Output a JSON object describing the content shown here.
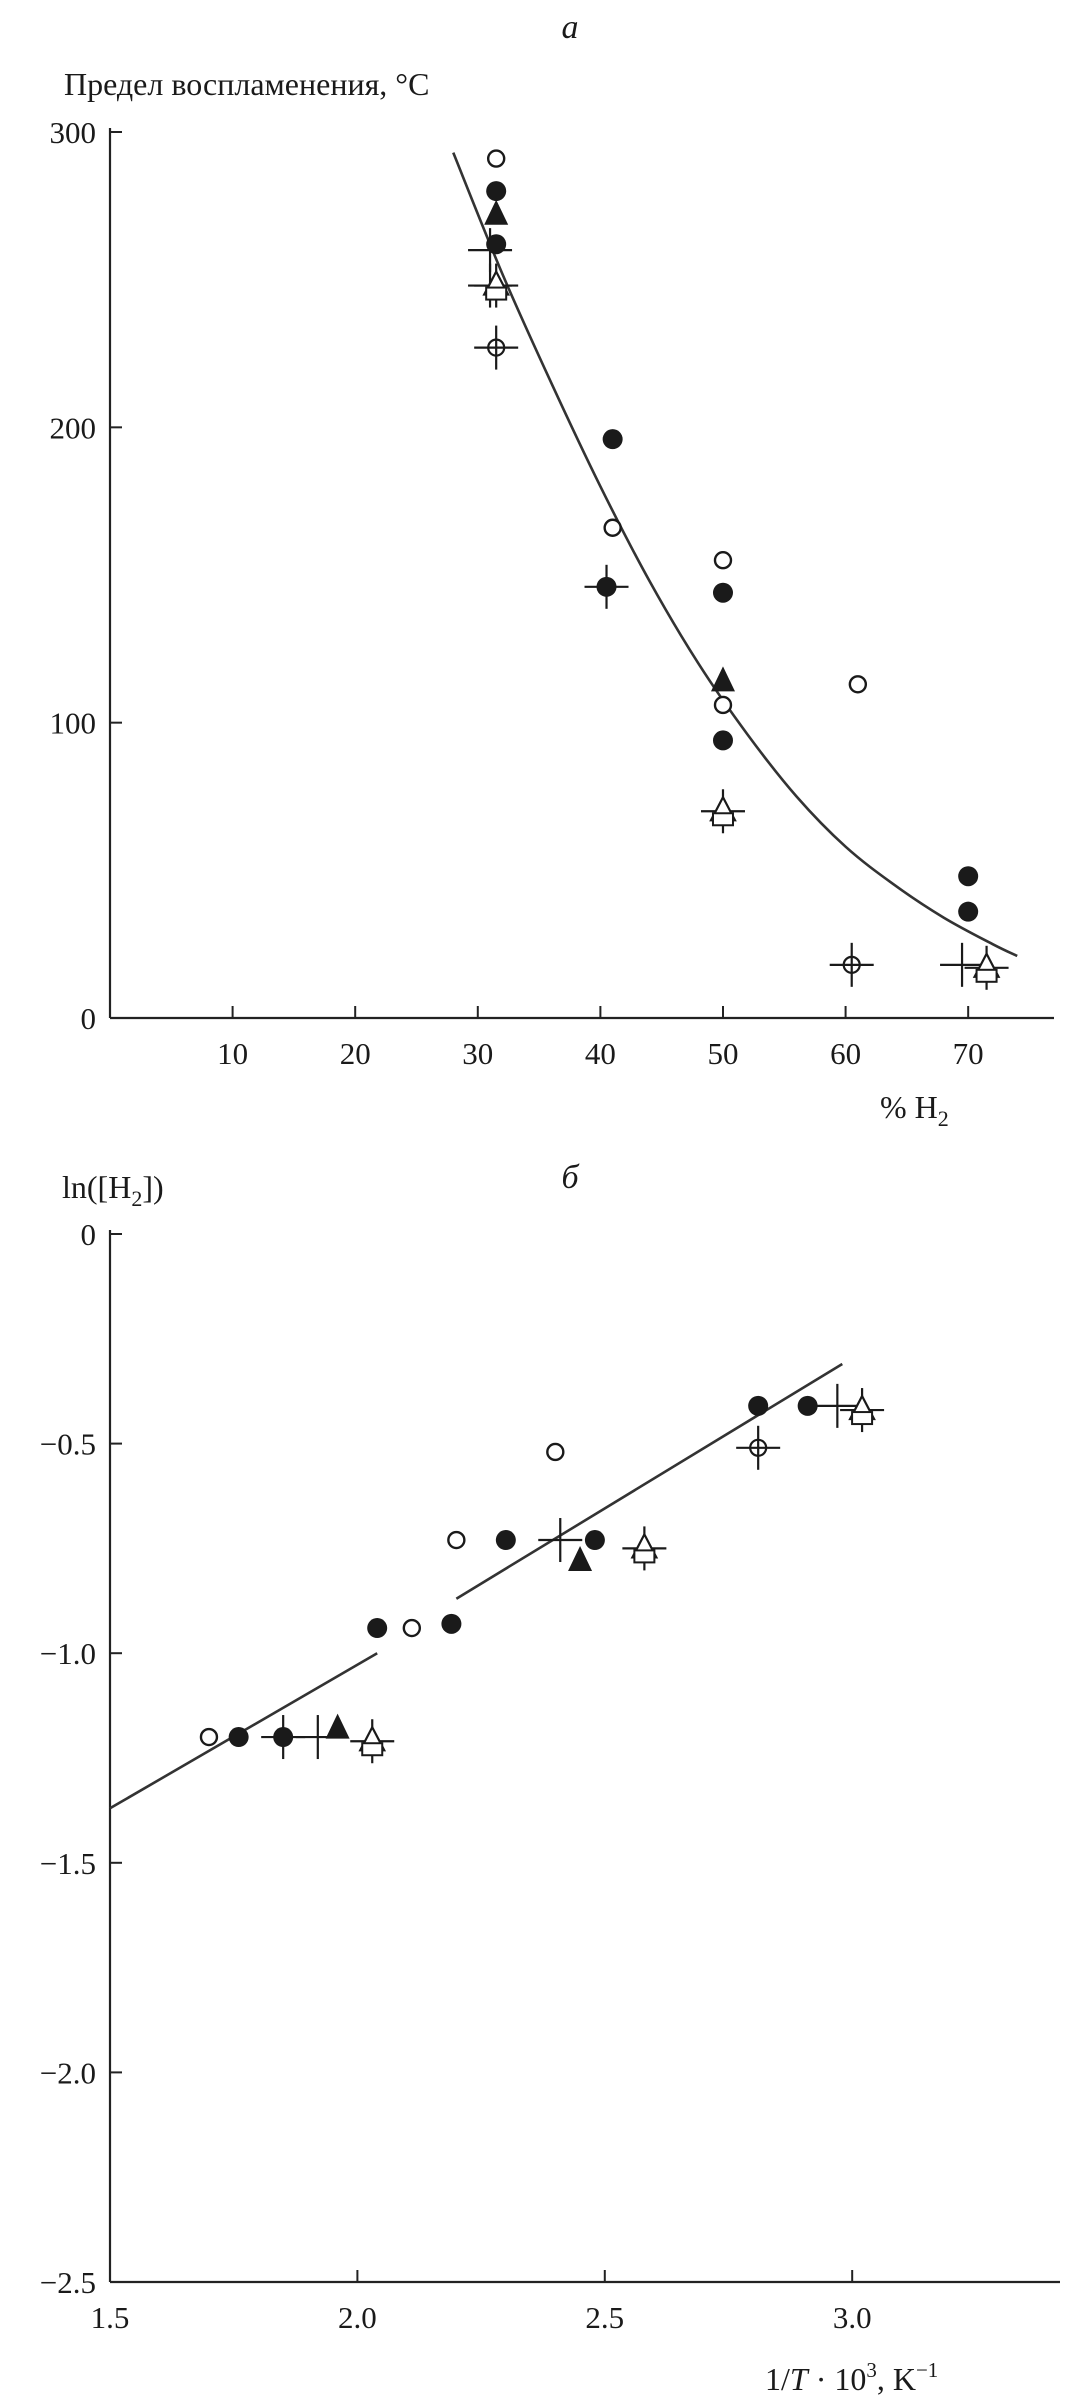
{
  "chart_data": [
    {
      "type": "scatter",
      "panel_label": "а",
      "title": "",
      "ylabel": "Предел воспламенения, °C",
      "xlabel": "% H2",
      "xlim": [
        0,
        77
      ],
      "ylim": [
        0,
        300
      ],
      "xticks": [
        "10",
        "20",
        "30",
        "40",
        "50",
        "60",
        "70"
      ],
      "yticks": [
        "0",
        "100",
        "200",
        "300"
      ],
      "grid": false,
      "fit_curve": [
        [
          28,
          293
        ],
        [
          32,
          252
        ],
        [
          36,
          215
        ],
        [
          40,
          180
        ],
        [
          44,
          148
        ],
        [
          48,
          120
        ],
        [
          52,
          96
        ],
        [
          56,
          75
        ],
        [
          60,
          58
        ],
        [
          64,
          45
        ],
        [
          68,
          34
        ],
        [
          72,
          25
        ],
        [
          74,
          21
        ]
      ],
      "series": [
        {
          "marker": "open-circle",
          "points": [
            [
              31.5,
              291
            ],
            [
              41,
              166
            ],
            [
              50,
              155
            ],
            [
              61,
              113
            ],
            [
              50,
              106
            ]
          ]
        },
        {
          "marker": "filled-circle",
          "points": [
            [
              31.5,
              280
            ],
            [
              31.5,
              262
            ],
            [
              41,
              196
            ],
            [
              50,
              144
            ],
            [
              70,
              48
            ],
            [
              70,
              36
            ],
            [
              50,
              94
            ]
          ]
        },
        {
          "marker": "filled-triangle",
          "points": [
            [
              31.5,
              272
            ],
            [
              50,
              114
            ]
          ]
        },
        {
          "marker": "filled-circle-cross",
          "points": [
            [
              40.5,
              146
            ]
          ]
        },
        {
          "marker": "cross",
          "points": [
            [
              31,
              260
            ],
            [
              31,
              248
            ],
            [
              69.5,
              18
            ]
          ]
        },
        {
          "marker": "open-circle-cross",
          "points": [
            [
              31.5,
              227
            ],
            [
              60.5,
              18
            ]
          ]
        },
        {
          "marker": "open-triangle",
          "points": [
            [
              31.5,
              248
            ],
            [
              50,
              70
            ],
            [
              71.5,
              17
            ]
          ]
        }
      ]
    },
    {
      "type": "scatter",
      "panel_label": "б",
      "title": "",
      "ylabel": "ln([H2])",
      "xlabel": "1/T · 10^3, K^−1",
      "xlim": [
        1.5,
        3.42
      ],
      "ylim": [
        -2.5,
        0
      ],
      "xticks": [
        "1.5",
        "2.0",
        "2.5",
        "3.0"
      ],
      "yticks": [
        "0",
        "−0.5",
        "−1.0",
        "−1.5",
        "−2.0",
        "−2.5"
      ],
      "grid": false,
      "fit_segments": [
        [
          [
            1.5,
            -1.37
          ],
          [
            2.04,
            -1.0
          ]
        ],
        [
          [
            2.2,
            -0.87
          ],
          [
            2.98,
            -0.31
          ]
        ]
      ],
      "series": [
        {
          "marker": "open-circle",
          "points": [
            [
              1.7,
              -1.2
            ],
            [
              2.11,
              -0.94
            ],
            [
              2.2,
              -0.73
            ],
            [
              2.4,
              -0.52
            ]
          ]
        },
        {
          "marker": "filled-circle",
          "points": [
            [
              1.76,
              -1.2
            ],
            [
              2.04,
              -0.94
            ],
            [
              2.3,
              -0.73
            ],
            [
              2.81,
              -0.41
            ],
            [
              2.91,
              -0.41
            ],
            [
              2.19,
              -0.93
            ],
            [
              2.48,
              -0.73
            ]
          ]
        },
        {
          "marker": "filled-circle-cross",
          "points": [
            [
              1.85,
              -1.2
            ]
          ]
        },
        {
          "marker": "cross",
          "points": [
            [
              1.92,
              -1.2
            ],
            [
              2.41,
              -0.73
            ],
            [
              2.97,
              -0.41
            ]
          ]
        },
        {
          "marker": "filled-triangle",
          "points": [
            [
              1.96,
              -1.18
            ],
            [
              2.45,
              -0.78
            ]
          ]
        },
        {
          "marker": "open-triangle",
          "points": [
            [
              2.03,
              -1.21
            ],
            [
              2.58,
              -0.75
            ],
            [
              3.02,
              -0.42
            ]
          ]
        },
        {
          "marker": "open-circle-cross",
          "points": [
            [
              2.81,
              -0.51
            ]
          ]
        }
      ]
    }
  ]
}
